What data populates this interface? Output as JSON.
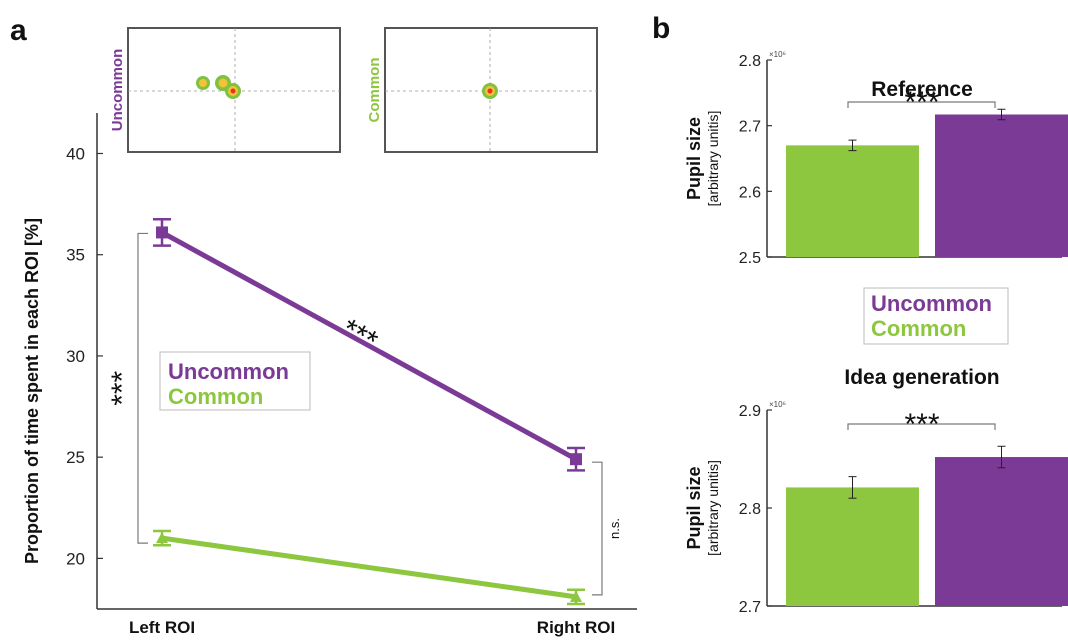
{
  "colors": {
    "uncommon": "#7B3A96",
    "common": "#8DC63F",
    "axis": "#333333",
    "bracket": "#7a7a7a",
    "heat_hot": "#e8331f",
    "heat_warm": "#f2c33a",
    "heat_edge": "#7fc240"
  },
  "panel_labels": {
    "a": "a",
    "b": "b"
  },
  "legend": {
    "uncommon": "Uncommon",
    "common": "Common"
  },
  "thumbnails": {
    "left_label": "Uncommon",
    "right_label": "Common"
  },
  "chart_data": [
    {
      "id": "panel-a",
      "type": "line",
      "categories": [
        "Left ROI",
        "Right ROI"
      ],
      "ylabel": "Proportion of time spent in each ROI [%]",
      "xlabel": "",
      "ylim": [
        17.5,
        42
      ],
      "yticks": [
        20,
        25,
        30,
        35,
        40
      ],
      "series": [
        {
          "name": "Uncommon",
          "values": [
            36.1,
            24.9
          ],
          "errors": [
            0.65,
            0.55
          ],
          "marker": "square"
        },
        {
          "name": "Common",
          "values": [
            21.0,
            18.1
          ],
          "errors": [
            0.35,
            0.35
          ],
          "marker": "triangle"
        }
      ],
      "annotations": {
        "slope": "***",
        "left": "***",
        "right": "n.s."
      },
      "legend_placement": "center-left"
    },
    {
      "id": "panel-b-top",
      "type": "bar",
      "title": "Reference",
      "ylabel": "Pupil size",
      "ylabel_sub": "[arbitrary unitis]",
      "scale_label": "×10⁶",
      "categories": [
        "Common",
        "Uncommon"
      ],
      "values": [
        2.67,
        2.717
      ],
      "errors": [
        0.008,
        0.008
      ],
      "ylim": [
        2.5,
        2.8
      ],
      "yticks": [
        2.5,
        2.6,
        2.7,
        2.8
      ],
      "tick_labels": [
        "2.5",
        "2.6",
        "2.7",
        "2.8"
      ],
      "significance": "***"
    },
    {
      "id": "panel-b-bottom",
      "type": "bar",
      "title": "Idea generation",
      "ylabel": "Pupil size",
      "ylabel_sub": "[arbitrary unitis]",
      "scale_label": "×10⁶",
      "categories": [
        "Common",
        "Uncommon"
      ],
      "values": [
        2.821,
        2.852
      ],
      "errors": [
        0.011,
        0.011
      ],
      "ylim": [
        2.7,
        2.9
      ],
      "yticks": [
        2.7,
        2.8,
        2.9
      ],
      "tick_labels": [
        "2.7",
        "2.8",
        "2.9"
      ],
      "significance": "***"
    }
  ]
}
